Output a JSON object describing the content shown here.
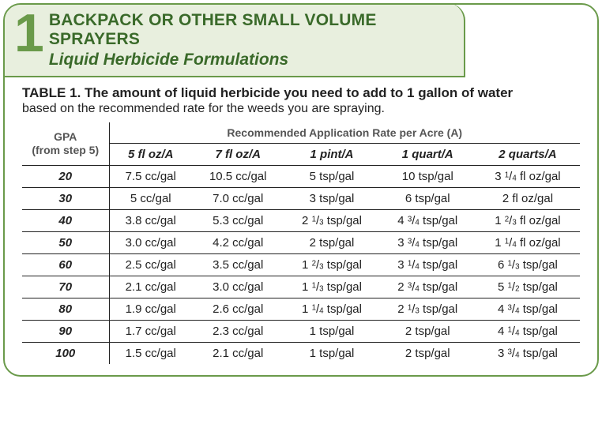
{
  "header": {
    "number": "1",
    "title": "BACKPACK OR OTHER SMALL VOLUME SPRAYERS",
    "subtitle": "Liquid Herbicide Formulations"
  },
  "caption_bold": "TABLE 1. The amount of liquid herbicide you need to add to 1 gallon of water",
  "caption_sub": "based on the recommended rate for the weeds you are spraying.",
  "gpa_label_line1": "GPA",
  "gpa_label_line2": "(from step 5)",
  "rate_span_label": "Recommended Application Rate per Acre (A)",
  "columns": [
    "5 fl oz/A",
    "7 fl oz/A",
    "1 pint/A",
    "1 quart/A",
    "2 quarts/A"
  ],
  "rows": [
    {
      "gpa": "20",
      "cells": [
        "7.5 cc/gal",
        "10.5 cc/gal",
        "5 tsp/gal",
        "10 tsp/gal",
        "3 {1/4} fl oz/gal"
      ]
    },
    {
      "gpa": "30",
      "cells": [
        "5 cc/gal",
        "7.0 cc/gal",
        "3 tsp/gal",
        "6 tsp/gal",
        "2 fl oz/gal"
      ]
    },
    {
      "gpa": "40",
      "cells": [
        "3.8 cc/gal",
        "5.3 cc/gal",
        "2 {1/3} tsp/gal",
        "4 {3/4} tsp/gal",
        "1 {2/3} fl oz/gal"
      ]
    },
    {
      "gpa": "50",
      "cells": [
        "3.0 cc/gal",
        "4.2 cc/gal",
        "2 tsp/gal",
        "3 {3/4} tsp/gal",
        "1 {1/4} fl oz/gal"
      ]
    },
    {
      "gpa": "60",
      "cells": [
        "2.5 cc/gal",
        "3.5 cc/gal",
        "1 {2/3} tsp/gal",
        "3 {1/4} tsp/gal",
        "6 {1/3} tsp/gal"
      ]
    },
    {
      "gpa": "70",
      "cells": [
        "2.1 cc/gal",
        "3.0 cc/gal",
        "1 {1/3} tsp/gal",
        "2 {3/4} tsp/gal",
        "5 {1/2} tsp/gal"
      ]
    },
    {
      "gpa": "80",
      "cells": [
        "1.9 cc/gal",
        "2.6 cc/gal",
        "1 {1/4} tsp/gal",
        "2 {1/3} tsp/gal",
        "4 {3/4} tsp/gal"
      ]
    },
    {
      "gpa": "90",
      "cells": [
        "1.7 cc/gal",
        "2.3 cc/gal",
        "1 tsp/gal",
        "2 tsp/gal",
        "4 {1/4} tsp/gal"
      ]
    },
    {
      "gpa": "100",
      "cells": [
        "1.5 cc/gal",
        "2.1 cc/gal",
        "1 tsp/gal",
        "2 tsp/gal",
        "3 {3/4} tsp/gal"
      ]
    }
  ],
  "colors": {
    "border_green": "#6a9a4a",
    "band_bg": "#e8efde",
    "text_green": "#3a6a2a",
    "rule": "#222222"
  }
}
